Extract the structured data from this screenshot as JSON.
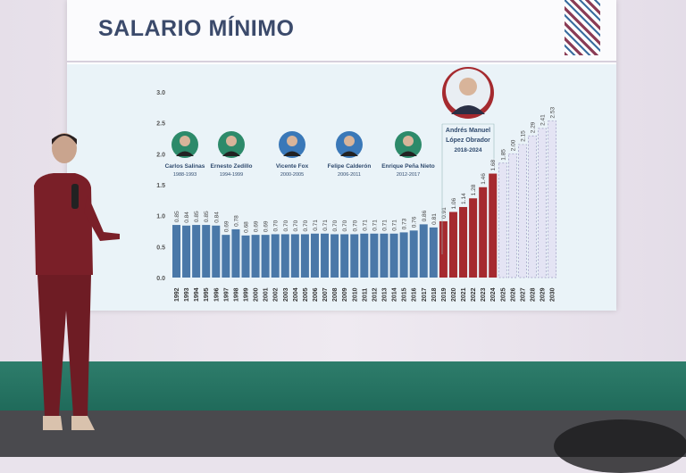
{
  "slide": {
    "title": "SALARIO MÍNIMO"
  },
  "presidents": [
    {
      "name": "Carlos Salinas",
      "term": "1988-1993"
    },
    {
      "name": "Ernesto Zedillo",
      "term": "1994-1999"
    },
    {
      "name": "Vicente Fox",
      "term": "2000-2005"
    },
    {
      "name": "Felipe Calderón",
      "term": "2006-2011"
    },
    {
      "name": "Enrique Peña Nieto",
      "term": "2012-2017"
    }
  ],
  "highlight_president": {
    "name_line1": "Andrés Manuel",
    "name_line2": "López Obrador",
    "term": "2018-2024"
  },
  "chart_data": {
    "type": "bar",
    "title": "SALARIO MÍNIMO",
    "xlabel": "",
    "ylabel": "",
    "ylim": [
      0,
      3.0
    ],
    "yticks": [
      "0.0",
      "0.5",
      "1.0",
      "1.5",
      "2.0",
      "2.5",
      "3.0"
    ],
    "grid": false,
    "categories": [
      "1992",
      "1993",
      "1994",
      "1995",
      "1996",
      "1997",
      "1998",
      "1999",
      "2000",
      "2001",
      "2002",
      "2003",
      "2004",
      "2005",
      "2006",
      "2007",
      "2008",
      "2009",
      "2010",
      "2011",
      "2012",
      "2013",
      "2014",
      "2015",
      "2016",
      "2017",
      "2018",
      "2019",
      "2020",
      "2021",
      "2022",
      "2023",
      "2024",
      "2025",
      "2026",
      "2027",
      "2028",
      "2029",
      "2030"
    ],
    "values": [
      0.85,
      0.84,
      0.85,
      0.85,
      0.84,
      0.69,
      0.78,
      0.68,
      0.69,
      0.69,
      0.7,
      0.7,
      0.7,
      0.7,
      0.71,
      0.71,
      0.7,
      0.7,
      0.7,
      0.71,
      0.71,
      0.71,
      0.71,
      0.73,
      0.76,
      0.86,
      0.81,
      0.91,
      1.06,
      1.14,
      1.28,
      1.46,
      1.68,
      1.85,
      2.0,
      2.15,
      2.29,
      2.41,
      2.53
    ],
    "labels": [
      "0.85",
      "0.84",
      "0.85",
      "0.85",
      "0.84",
      "0.69",
      "0.78",
      "0.68",
      "0.69",
      "0.69",
      "0.70",
      "0.70",
      "0.70",
      "0.70",
      "0.71",
      "0.71",
      "0.70",
      "0.70",
      "0.70",
      "0.71",
      "0.71",
      "0.71",
      "0.71",
      "0.73",
      "0.76",
      "0.86",
      "0.81",
      "0.91",
      "1.06",
      "1.14",
      "1.28",
      "1.46",
      "1.68",
      "1.85",
      "2.00",
      "2.15",
      "2.29",
      "2.41",
      "2.53"
    ],
    "segments": [
      {
        "from": "1992",
        "to": "2018",
        "color": "#4a78a8",
        "style": "solid"
      },
      {
        "from": "2019",
        "to": "2024",
        "color": "#a52a2f",
        "style": "solid"
      },
      {
        "from": "2025",
        "to": "2030",
        "color": "#dcdcf0",
        "style": "dashed"
      }
    ]
  }
}
